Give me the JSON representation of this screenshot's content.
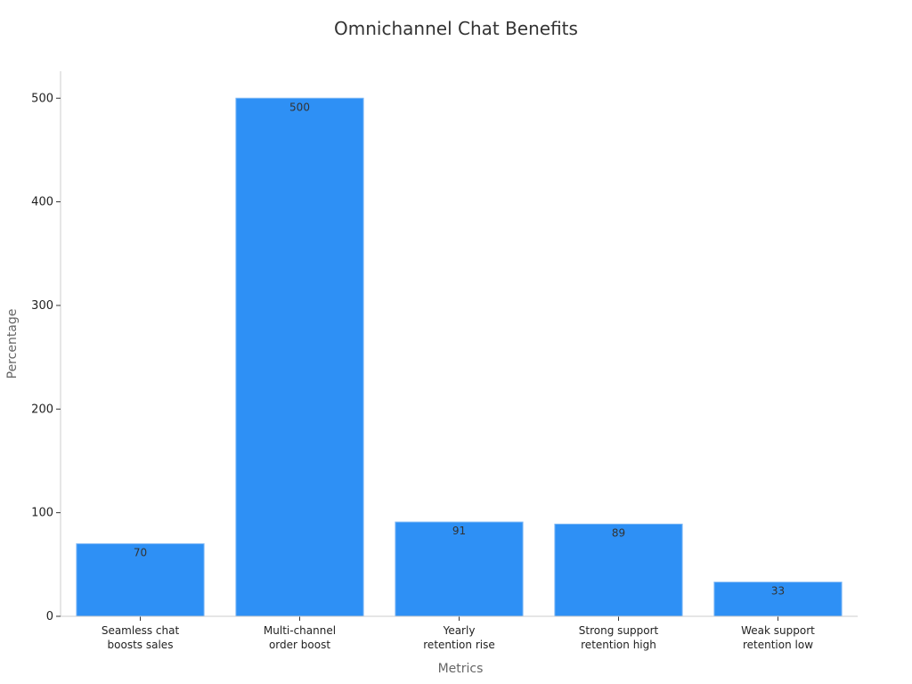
{
  "chart_data": {
    "type": "bar",
    "title": "Omnichannel Chat Benefits",
    "xlabel": "Metrics",
    "ylabel": "Percentage",
    "categories": [
      "Seamless chat boosts sales",
      "Multi-channel order boost",
      "Yearly retention rise",
      "Strong support retention high",
      "Weak support retention low"
    ],
    "category_lines": [
      [
        "Seamless chat",
        "boosts sales"
      ],
      [
        "Multi-channel",
        "order boost"
      ],
      [
        "Yearly",
        "retention rise"
      ],
      [
        "Strong support",
        "retention high"
      ],
      [
        "Weak support",
        "retention low"
      ]
    ],
    "values": [
      70,
      500,
      91,
      89,
      33
    ],
    "ylim": [
      0,
      526
    ],
    "yticks": [
      0,
      100,
      200,
      300,
      400,
      500
    ],
    "bar_color": "#2e90f5",
    "grid": false,
    "legend": "none"
  }
}
